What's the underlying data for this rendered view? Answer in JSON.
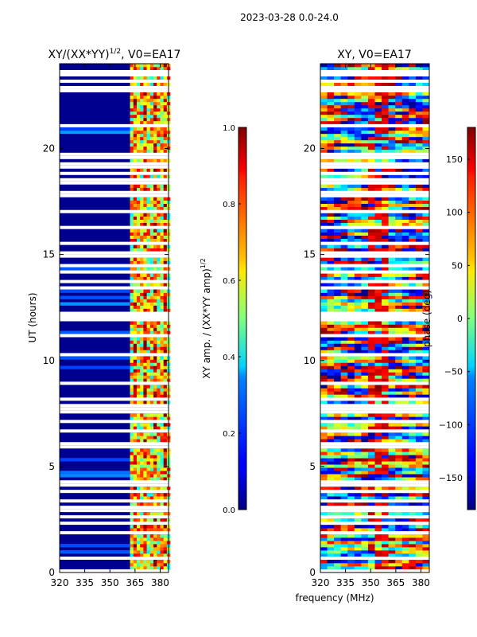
{
  "suptitle": "2023-03-28 0.0-24.0",
  "chart_data": [
    {
      "type": "heatmap",
      "title": "XY/(XX*YY)",
      "title_sup": "1/2",
      "title_suffix": ", V0=EA17",
      "xlabel": "",
      "ylabel": "UT (hours)",
      "xlim": [
        320,
        385
      ],
      "ylim": [
        0,
        24
      ],
      "xticks": [
        320,
        335,
        350,
        365,
        380
      ],
      "yticks": [
        0,
        5,
        10,
        15,
        20
      ],
      "colorbar": {
        "label": "XY amp. / (XX*YY amp)",
        "label_sup": "1/2",
        "range": [
          0.0,
          1.0
        ],
        "ticks": [
          "0.0",
          "0.2",
          "0.4",
          "0.6",
          "0.8",
          "1.0"
        ],
        "colormap": "jet"
      }
    },
    {
      "type": "heatmap",
      "title": "XY, V0=EA17",
      "xlabel": "frequency (MHz)",
      "ylabel": "",
      "xlim": [
        320,
        385
      ],
      "ylim": [
        0,
        24
      ],
      "xticks": [
        320,
        335,
        350,
        365,
        380
      ],
      "yticks": [
        0,
        5,
        10,
        15,
        20
      ],
      "colorbar": {
        "label": "phase (deg)",
        "range": [
          -180,
          180
        ],
        "ticks": [
          "150",
          "100",
          "50",
          "0",
          "−50",
          "−100",
          "−150"
        ],
        "tick_values": [
          150,
          100,
          50,
          0,
          -50,
          -100,
          -150
        ],
        "colormap": "jet"
      }
    }
  ]
}
